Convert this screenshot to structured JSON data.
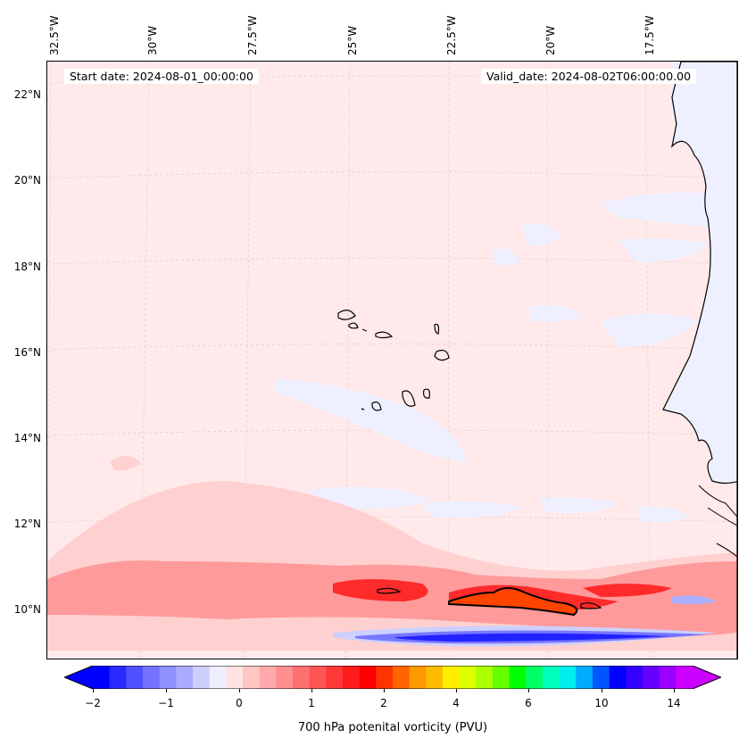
{
  "map": {
    "start_date": "Start date: 2024-08-01_00:00:00",
    "valid_date": "Valid_date: 2024-08-02T06:00:00.00",
    "lon_labels": [
      "32.5°W",
      "30°W",
      "27.5°W",
      "25°W",
      "22.5°W",
      "20°W",
      "17.5°W"
    ],
    "lat_labels": [
      "22°N",
      "20°N",
      "18°N",
      "16°N",
      "14°N",
      "12°N",
      "10°N"
    ],
    "colors": {
      "background": "#ffe9ea",
      "light_blue": "#eef0ff",
      "light_red": "#ffd0d0",
      "mid_red": "#ff9a9a",
      "strong_red": "#ff2222",
      "orange_red": "#ff4400",
      "blue": "#0000ff",
      "mid_blue": "#7777ff",
      "coast": "#000000"
    }
  },
  "colorbar": {
    "label": "700 hPa potenital vorticity (PVU)",
    "ticks": [
      "−2",
      "−1",
      "0",
      "1",
      "2",
      "4",
      "6",
      "10",
      "14"
    ],
    "colors": [
      "#0000ff",
      "#2a2aff",
      "#5050ff",
      "#7373ff",
      "#8f8fff",
      "#acacff",
      "#cfcfff",
      "#eeeeff",
      "#ffe3e3",
      "#ffc6c6",
      "#ffaaaa",
      "#ff8e8e",
      "#ff7171",
      "#ff5454",
      "#ff3838",
      "#ff1c1c",
      "#ff0000",
      "#ff3300",
      "#ff6600",
      "#ff9900",
      "#ffbb00",
      "#ffee00",
      "#ddff00",
      "#aaff00",
      "#66ff00",
      "#00ff00",
      "#00ff66",
      "#00ffbb",
      "#00eeee",
      "#00aaff",
      "#0055ff",
      "#0000ff",
      "#3300ff",
      "#6600ff",
      "#9900ff",
      "#cc00ff"
    ]
  }
}
